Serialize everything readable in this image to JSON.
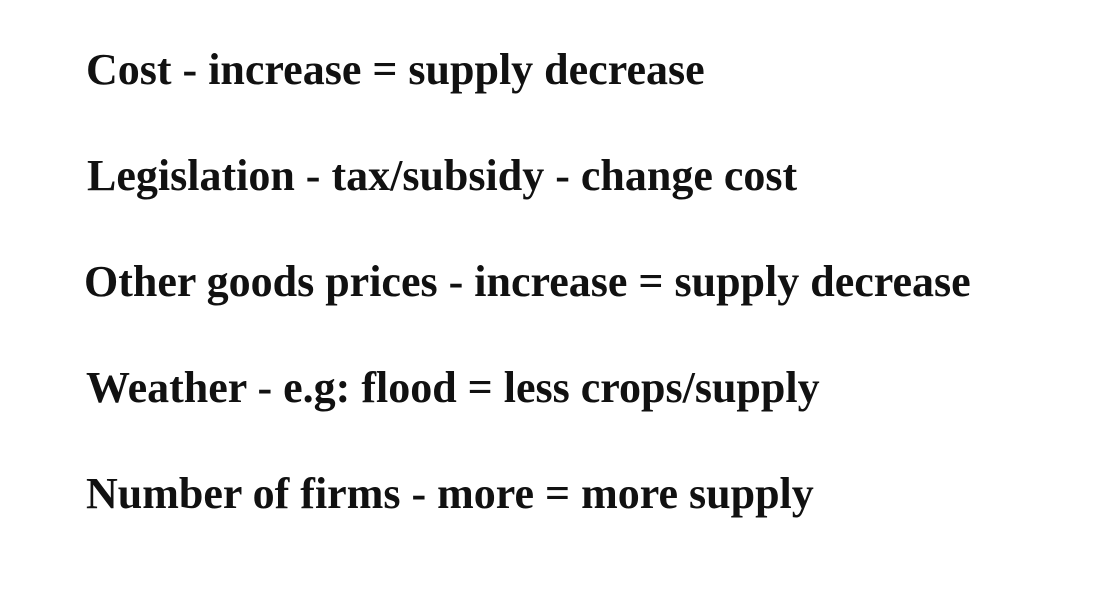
{
  "lines": [
    "Cost - increase = supply decrease",
    "Legislation - tax/subsidy - change cost",
    "Other goods prices - increase = supply decrease",
    "Weather - e.g: flood = less crops/supply",
    "Number of firms - more = more supply"
  ]
}
